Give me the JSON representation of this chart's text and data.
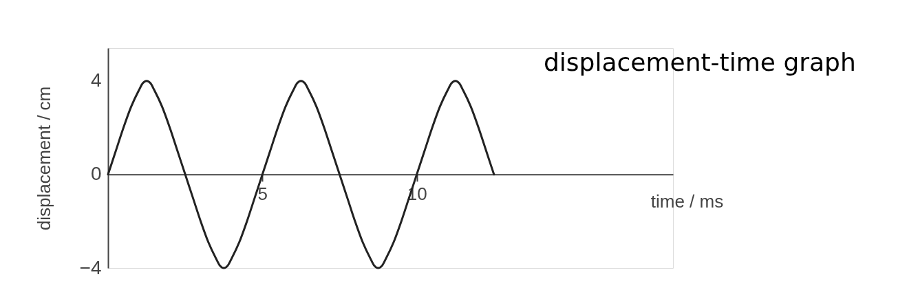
{
  "chart_data": {
    "type": "line",
    "title": "displacement-time graph",
    "xlabel": "time / ms",
    "ylabel": "displacement / cm",
    "x": [
      0,
      0.25,
      0.5,
      0.75,
      1,
      1.125,
      1.25,
      1.375,
      1.5,
      1.75,
      2,
      2.25,
      2.5,
      2.75,
      3,
      3.25,
      3.5,
      3.625,
      3.75,
      3.875,
      4,
      4.25,
      4.5,
      4.75,
      5,
      5.25,
      5.5,
      5.75,
      6,
      6.125,
      6.25,
      6.375,
      6.5,
      6.75,
      7,
      7.25,
      7.5,
      7.75,
      8,
      8.25,
      8.5,
      8.625,
      8.75,
      8.875,
      9,
      9.25,
      9.5,
      9.75,
      10,
      10.25,
      10.5,
      10.75,
      11,
      11.125,
      11.25,
      11.375,
      11.5,
      11.75,
      12,
      12.25,
      12.5
    ],
    "series": [
      {
        "color": "#222222",
        "values": [
          0,
          1.0,
          2.0,
          2.9,
          3.6,
          3.9,
          4,
          3.9,
          3.6,
          2.9,
          2.0,
          1.0,
          0,
          -1.0,
          -2.0,
          -2.9,
          -3.6,
          -3.9,
          -4,
          -3.9,
          -3.6,
          -2.9,
          -2.0,
          -1.0,
          0,
          1.0,
          2.0,
          2.9,
          3.6,
          3.9,
          4,
          3.9,
          3.6,
          2.9,
          2.0,
          1.0,
          0,
          -1.0,
          -2.0,
          -2.9,
          -3.6,
          -3.9,
          -4,
          -3.9,
          -3.6,
          -2.9,
          -2.0,
          -1.0,
          0,
          1.0,
          2.0,
          2.9,
          3.6,
          3.9,
          4,
          3.9,
          3.6,
          2.9,
          2.0,
          1.0,
          0
        ]
      }
    ],
    "xlim": [
      0,
      18.3
    ],
    "ylim": [
      -4,
      5.4
    ],
    "xticks": [
      5,
      10
    ],
    "yticks": [
      {
        "value": -4,
        "label": "−4"
      },
      0,
      4
    ],
    "marker": "none",
    "line_style": "solid"
  }
}
